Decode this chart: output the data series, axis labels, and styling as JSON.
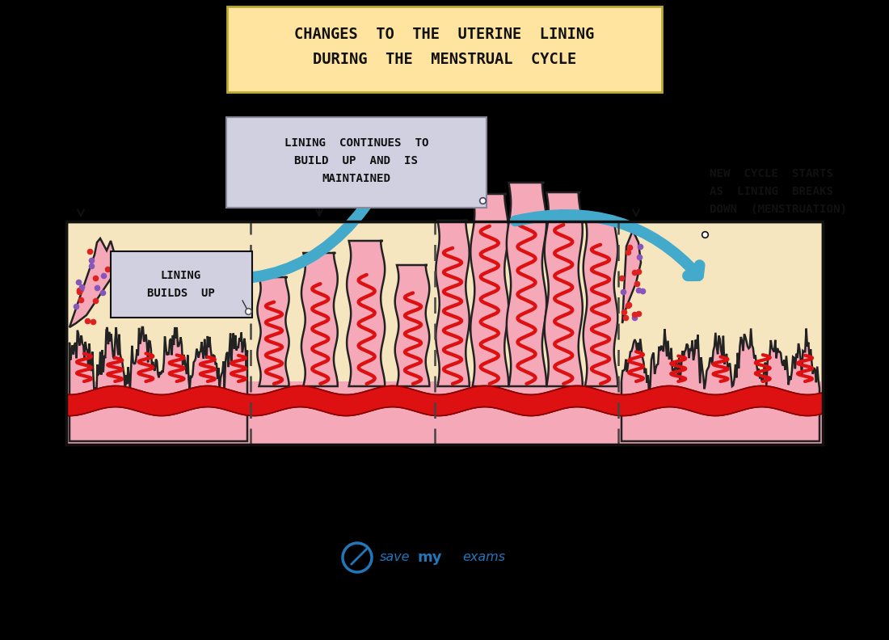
{
  "bg_color": "#000000",
  "title_box_color": "#FFE4A0",
  "title_line1": "CHANGES  TO  THE  UTERINE  LINING",
  "title_line2": "DURING  THE  MENSTRUAL  CYCLE",
  "label_box_color": "#D0D0E0",
  "lining_pink": "#F5A8B8",
  "lining_pink_light": "#FBCCD4",
  "blood_red": "#DD1111",
  "tissue_bg": "#F5E6C0",
  "arrow_cyan": "#44AACC",
  "text_black": "#111111",
  "white": "#FFFFFF",
  "dot_red": "#DD2222",
  "dot_purple": "#8855BB",
  "savemyexams_blue": "#2277BB",
  "menstruation_label": "MENSTRUATION",
  "lining_builds_label": "LINING\nBUILDS  UP",
  "continues_label": "LINING  CONTINUES  TO\nBUILD  UP  AND  IS\nMAINTAINED",
  "new_cycle_label": "NEW  CYCLE  STARTS\nAS  LINING  BREAKS\nDOWN  (MENSTRUATION)",
  "savemyexams_text": "savemyexams"
}
